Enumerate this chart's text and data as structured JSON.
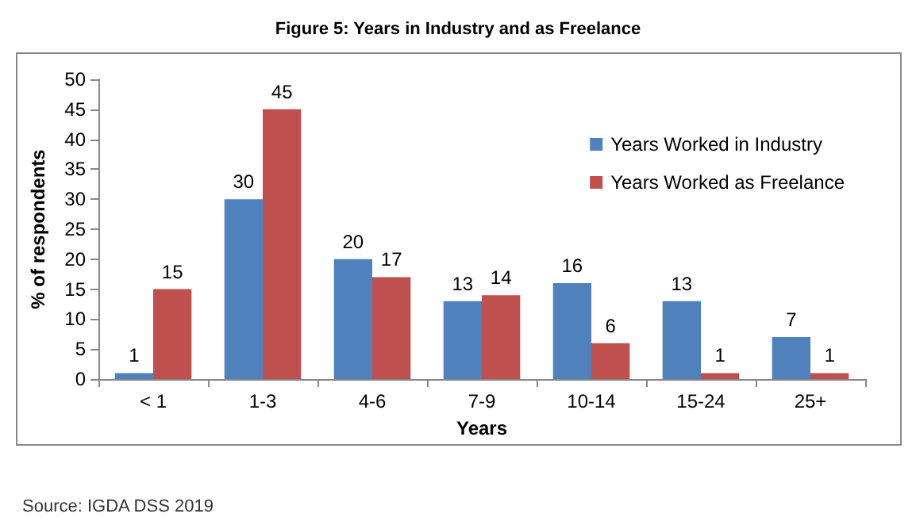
{
  "chart_data": {
    "type": "bar",
    "title": "Figure 5: Years in Industry and as Freelance",
    "xlabel": "Years",
    "ylabel": "% of respondents",
    "categories": [
      "< 1",
      "1-3",
      "4-6",
      "7-9",
      "10-14",
      "15-24",
      "25+"
    ],
    "series": [
      {
        "name": "Years Worked in Industry",
        "color": "#4f81bd",
        "values": [
          1,
          30,
          20,
          13,
          16,
          13,
          7
        ]
      },
      {
        "name": "Years Worked as Freelance",
        "color": "#c0504d",
        "values": [
          15,
          45,
          17,
          14,
          6,
          1,
          1
        ]
      }
    ],
    "ylim": [
      0,
      50
    ],
    "yticks": [
      0,
      5,
      10,
      15,
      20,
      25,
      30,
      35,
      40,
      45,
      50
    ],
    "data_labels": true,
    "legend": "top right",
    "grid": false,
    "annotations": [
      "Source: IGDA DSS 2019"
    ]
  }
}
